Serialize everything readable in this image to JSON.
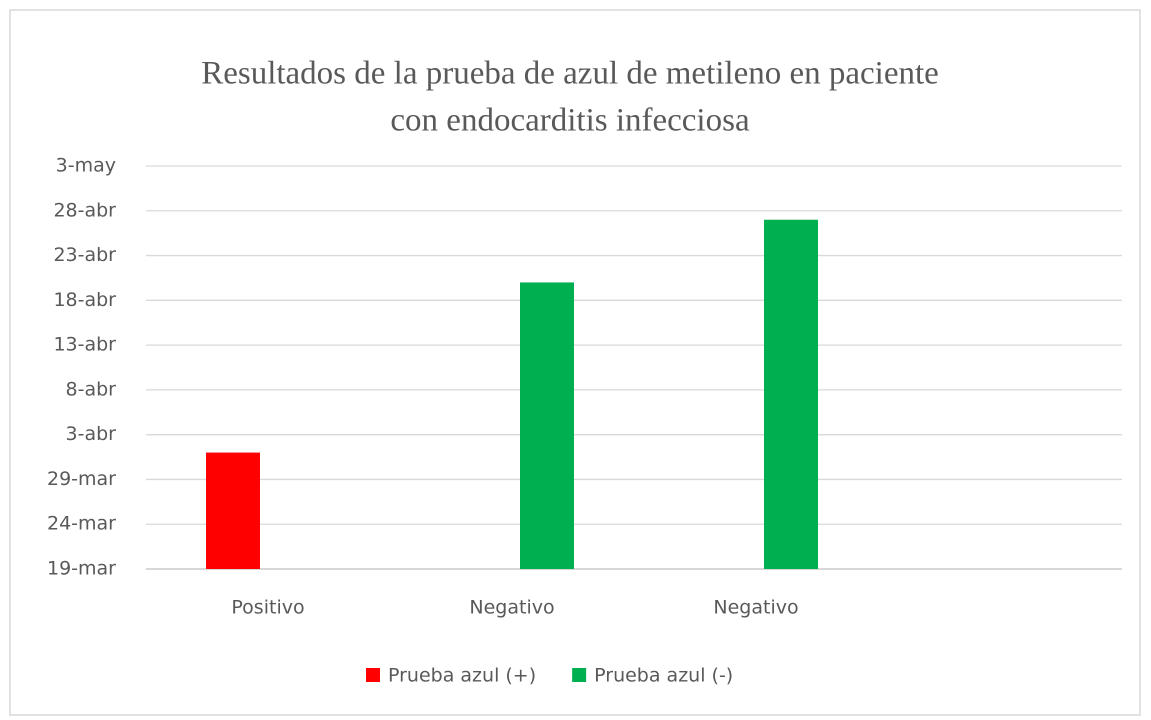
{
  "chart_data": {
    "type": "bar",
    "title": [
      "Resultados de la prueba de azul de metileno en paciente",
      "con endocarditis infecciosa"
    ],
    "categories": [
      "Positivo",
      "Negativo",
      "Negativo",
      null
    ],
    "series": [
      {
        "name": "Prueba azul (+)",
        "color": "#ff0000",
        "values": [
          91,
          null,
          null,
          null
        ]
      },
      {
        "name": "Prueba azul (-)",
        "color": "#00b050",
        "values": [
          null,
          110,
          117,
          null
        ]
      }
    ],
    "ylim": [
      78,
      123
    ],
    "yticks": [
      {
        "value": 78,
        "label": "19-mar"
      },
      {
        "value": 83,
        "label": "24-mar"
      },
      {
        "value": 88,
        "label": "29-mar"
      },
      {
        "value": 93,
        "label": "3-abr"
      },
      {
        "value": 98,
        "label": "8-abr"
      },
      {
        "value": 103,
        "label": "13-abr"
      },
      {
        "value": 108,
        "label": "18-abr"
      },
      {
        "value": 113,
        "label": "23-abr"
      },
      {
        "value": 118,
        "label": "28-abr"
      },
      {
        "value": 123,
        "label": "3-may"
      }
    ],
    "grid": true,
    "legend": "bottom"
  }
}
